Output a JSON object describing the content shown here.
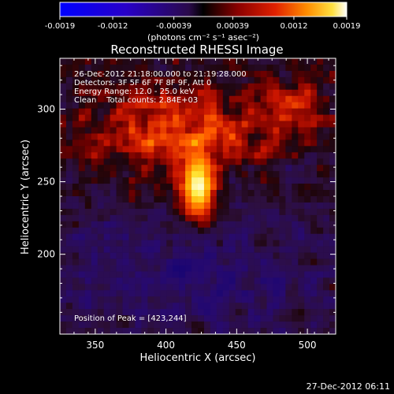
{
  "colorbar": {
    "ticks": [
      "-0.0019",
      "-0.0012",
      "-0.00039",
      "0.00039",
      "0.0012",
      "0.0019"
    ],
    "range": [
      -0.0019,
      0.0019
    ],
    "unit_label": "(photons cm⁻² s⁻¹ asec⁻²)"
  },
  "chart_data": {
    "type": "heatmap",
    "title": "Reconstructed RHESSI Image",
    "xlabel": "Heliocentric X (arcsec)",
    "ylabel": "Heliocentric Y (arcsec)",
    "xlim": [
      325,
      520
    ],
    "ylim": [
      145,
      335
    ],
    "x_ticks": [
      350,
      400,
      450,
      500
    ],
    "y_ticks": [
      200,
      250,
      300
    ],
    "peak": {
      "x": 423,
      "y": 244
    },
    "colormap": "IDL red-temperature with negative values in blue/purple",
    "info_lines": [
      "26-Dec-2012 21:18:00.000 to 21:19:28.000",
      "Detectors: 3F 5F 6F 7F 8F 9F, Att 0",
      "Energy Range: 12.0 - 25.0 keV",
      "Clean    Total counts: 2.84E+03"
    ],
    "peak_label": "Position of Peak = [423,244]"
  },
  "timestamp": "27-Dec-2012 06:11"
}
